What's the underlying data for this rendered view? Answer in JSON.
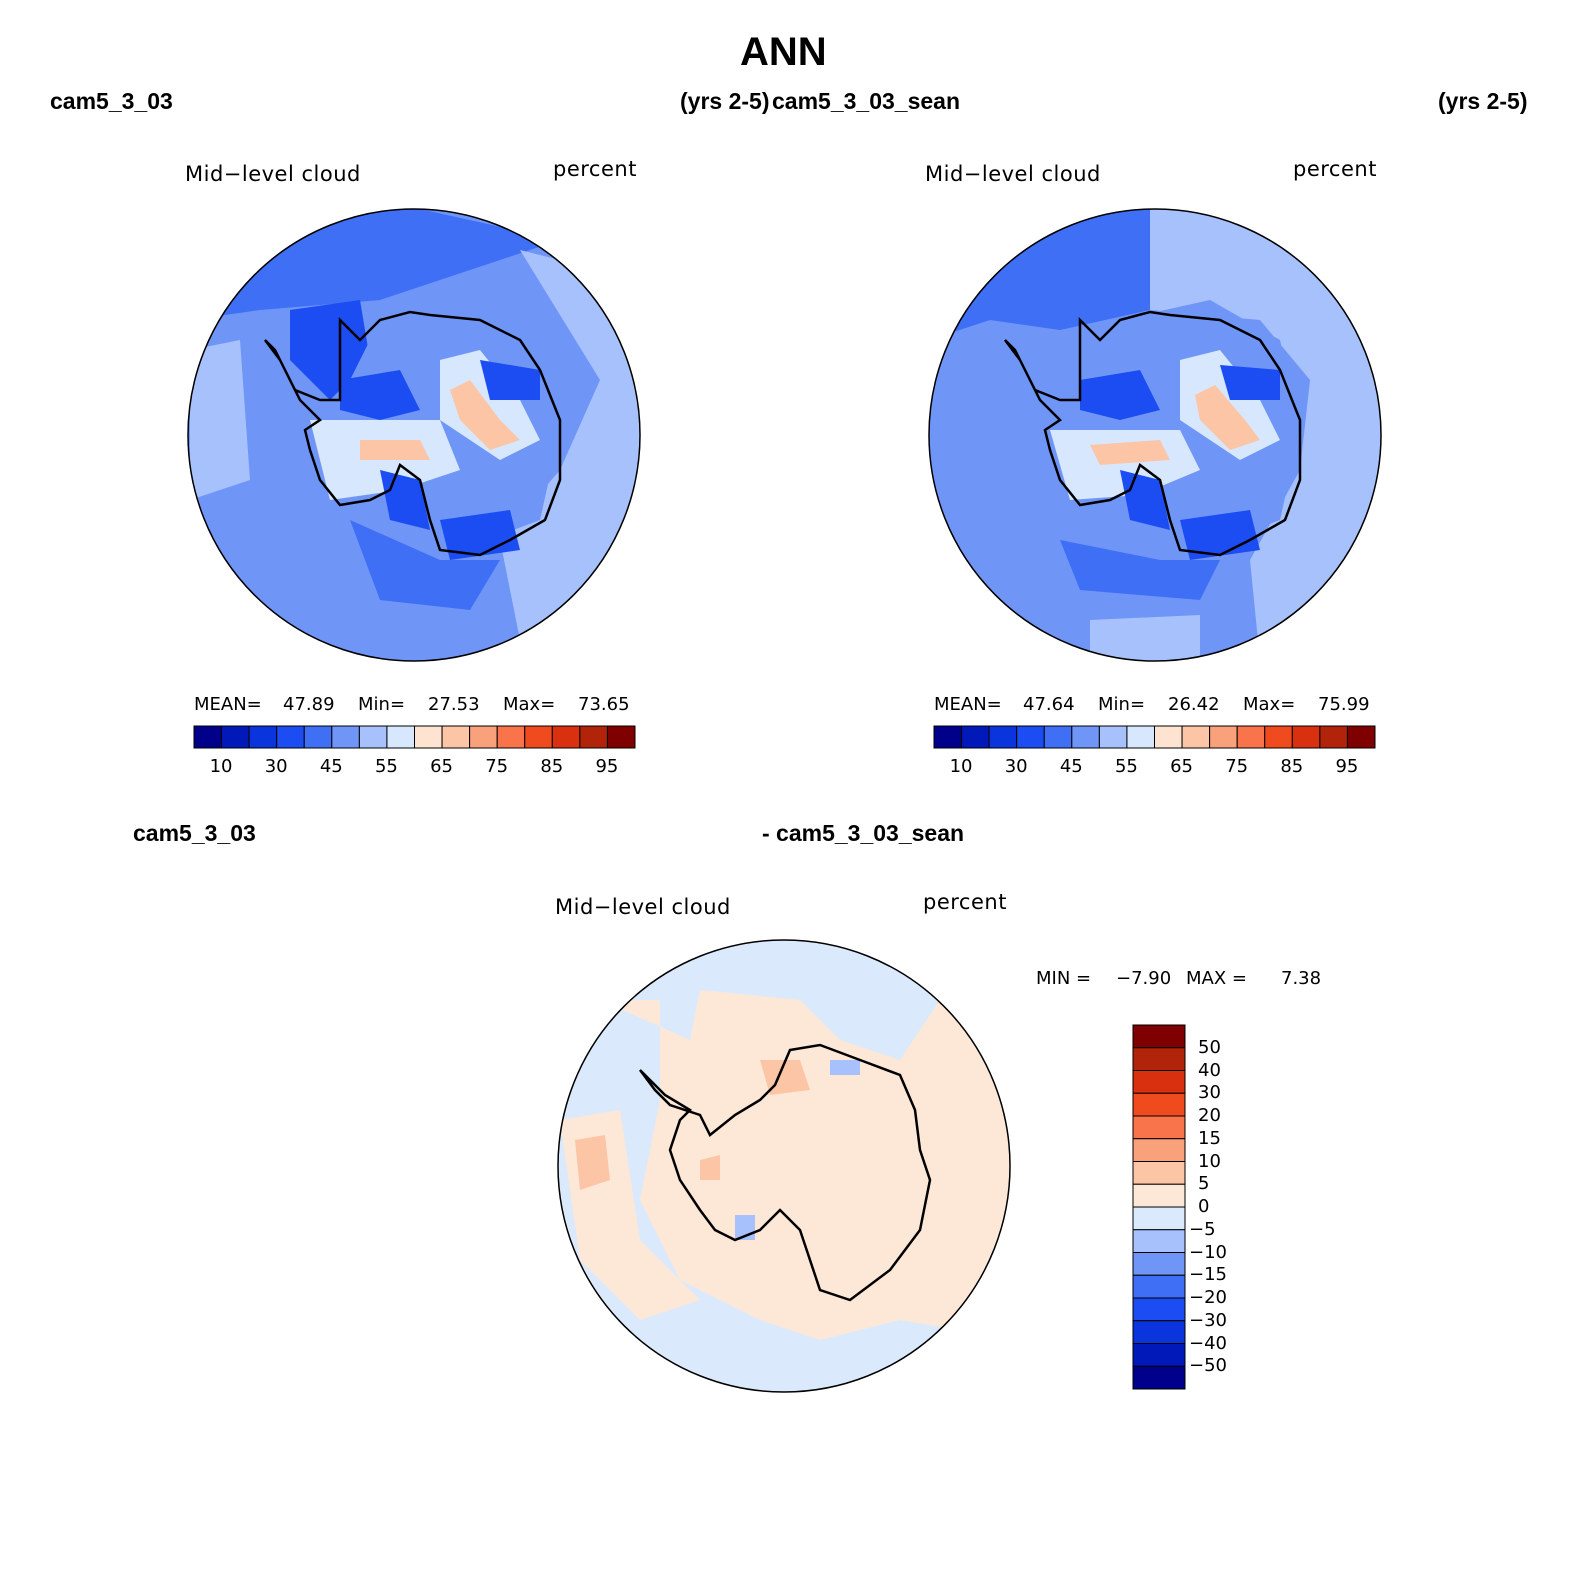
{
  "page": {
    "title": "ANN"
  },
  "headers": {
    "left_case": "cam5_3_03",
    "left_years": "(yrs 2-5)",
    "right_case": "cam5_3_03_sean",
    "right_years": "(yrs 2-5)",
    "diff_case_a": "cam5_3_03",
    "diff_case_b": "- cam5_3_03_sean"
  },
  "panels": {
    "left": {
      "variable": "Mid−level cloud",
      "units": "percent",
      "mean_label": "MEAN=",
      "mean": "47.89",
      "min_label": "Min=",
      "min": "27.53",
      "max_label": "Max=",
      "max": "73.65"
    },
    "right": {
      "variable": "Mid−level cloud",
      "units": "percent",
      "mean_label": "MEAN=",
      "mean": "47.64",
      "min_label": "Min=",
      "min": "26.42",
      "max_label": "Max=",
      "max": "75.99"
    },
    "diff": {
      "variable": "Mid−level cloud",
      "units": "percent",
      "min_label": "MIN =",
      "min": "−7.90",
      "max_label": "MAX =",
      "max": "7.38"
    }
  },
  "colorbar_main": {
    "tick_labels": [
      "10",
      "30",
      "45",
      "55",
      "65",
      "75",
      "85",
      "95"
    ],
    "colors": [
      "#00008a",
      "#0019b8",
      "#0a34dc",
      "#1c4df2",
      "#3f6ff5",
      "#6f95f7",
      "#a6c1fb",
      "#d7e7fe",
      "#fde3d0",
      "#fcc5a6",
      "#f9a17a",
      "#f9744a",
      "#f04a1f",
      "#d93010",
      "#b2240a",
      "#7f0000"
    ]
  },
  "colorbar_diff": {
    "tick_labels": [
      "50",
      "40",
      "30",
      "20",
      "15",
      "10",
      "5",
      "0",
      "−5",
      "−10",
      "−15",
      "−20",
      "−30",
      "−40",
      "−50"
    ],
    "colors": [
      "#7f0000",
      "#b2240a",
      "#d93010",
      "#f04a1f",
      "#f9744a",
      "#f9a17a",
      "#fcc5a6",
      "#fde8d7",
      "#dbe9fc",
      "#a6c1fb",
      "#6f95f7",
      "#3f6ff5",
      "#1c4df2",
      "#0a34dc",
      "#0019b8",
      "#00008a"
    ]
  }
}
